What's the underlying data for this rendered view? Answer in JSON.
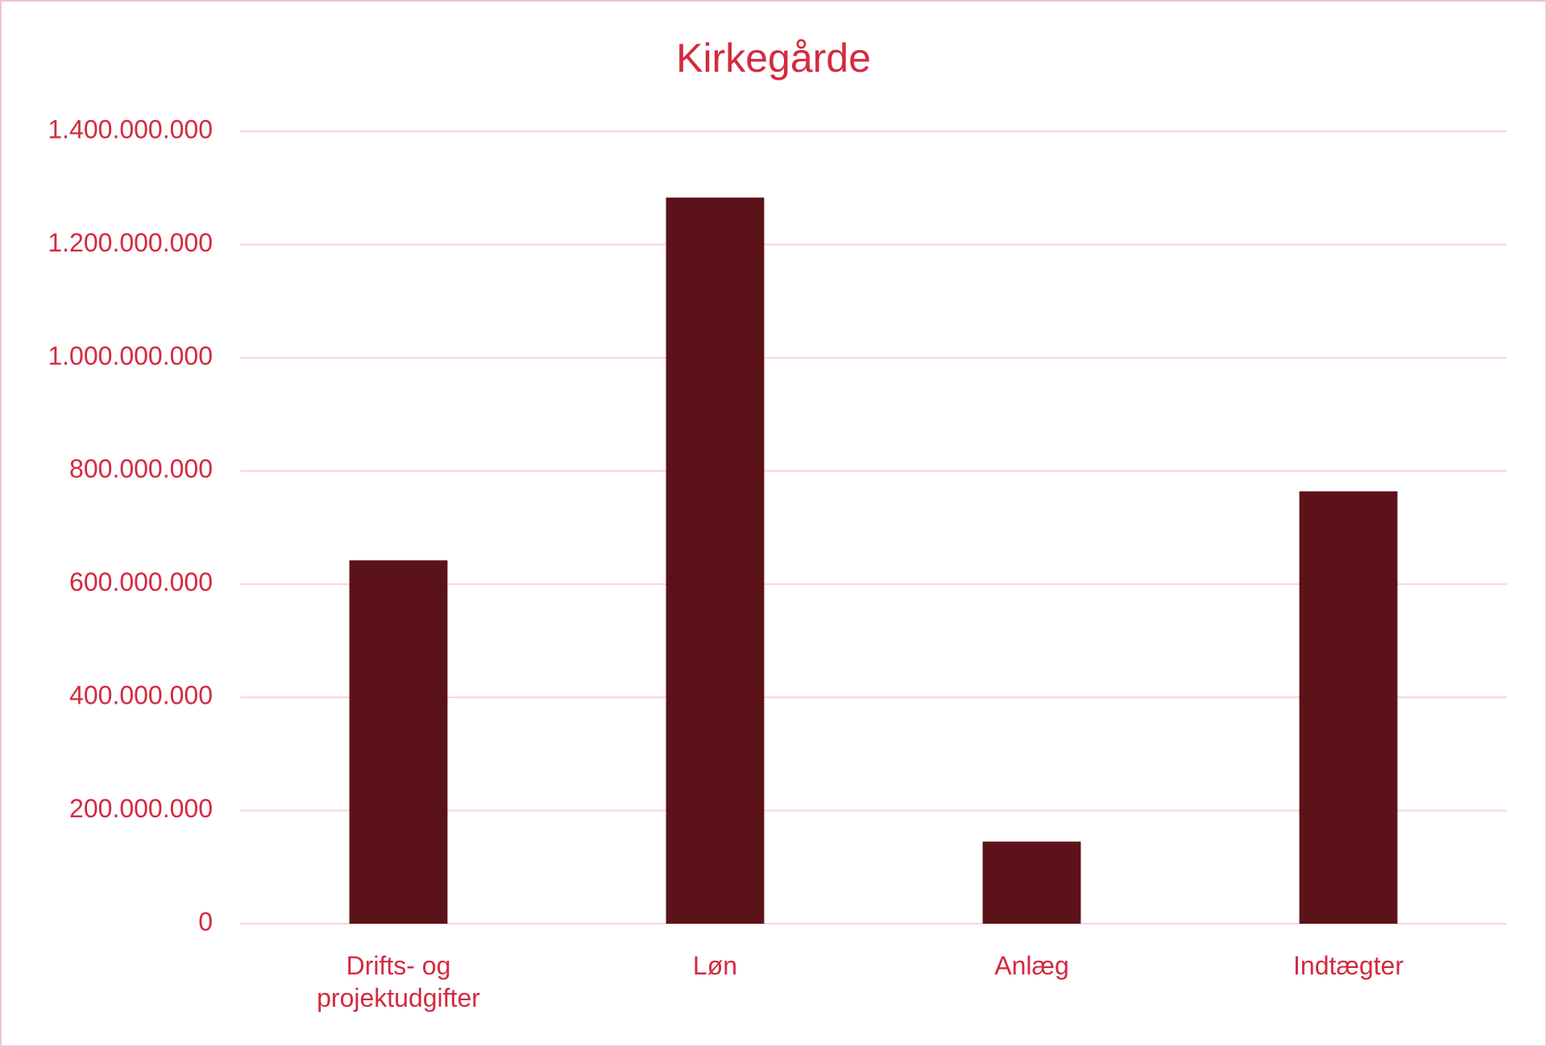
{
  "chart_data": {
    "type": "bar",
    "title": "Kirkegårde",
    "categories": [
      "Drifts- og projektudgifter",
      "Løn",
      "Anlæg",
      "Indtægter"
    ],
    "values": [
      642000000,
      1283000000,
      145000000,
      764000000
    ],
    "color": "#5c1219",
    "ylim": [
      0,
      1400000000
    ],
    "yticks": [
      0,
      {
        "value": 200000000,
        "label": "200.000.000"
      },
      {
        "value": 400000000,
        "label": "400.000.000"
      },
      {
        "value": 600000000,
        "label": "600.000.000"
      },
      {
        "value": 800000000,
        "label": "800.000.000"
      },
      {
        "value": 1000000000,
        "label": "1.000.000.000"
      },
      {
        "value": 1200000000,
        "label": "1.200.000.000"
      },
      {
        "value": 1400000000,
        "label": "1.400.000.000"
      }
    ],
    "grid": true
  }
}
